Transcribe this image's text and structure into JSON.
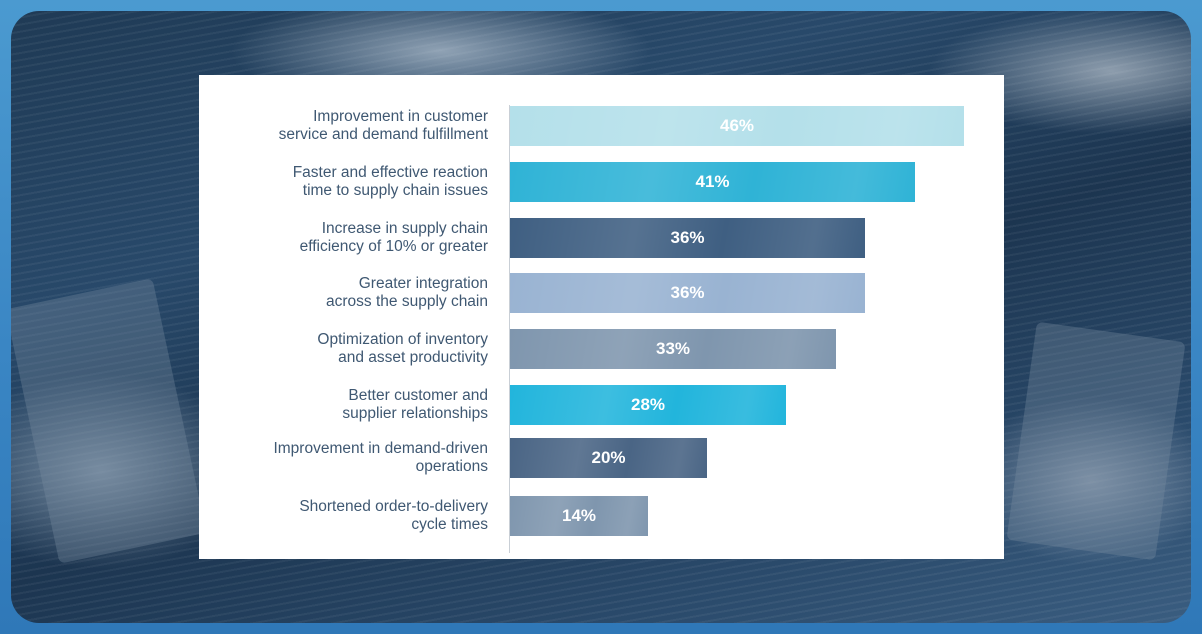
{
  "chart_data": {
    "type": "bar",
    "orientation": "horizontal",
    "categories": [
      "Improvement in customer\nservice and demand fulfillment",
      "Faster and effective reaction\ntime to supply chain issues",
      "Increase in supply chain\nefficiency of 10% or greater",
      "Greater integration\nacross the supply chain",
      "Optimization of inventory\nand asset productivity",
      "Better customer and\nsupplier relationships",
      "Improvement in demand-driven\noperations",
      "Shortened order-to-delivery\ncycle times"
    ],
    "values": [
      46,
      41,
      36,
      36,
      33,
      28,
      20,
      14
    ],
    "value_labels": [
      "46%",
      "41%",
      "36%",
      "36%",
      "33%",
      "28%",
      "20%",
      "14%"
    ],
    "bar_colors": [
      "#b4e0ea",
      "#2fb3d6",
      "#3f5f82",
      "#99b3d2",
      "#7f96ae",
      "#22b5dc",
      "#4a6585",
      "#7f96ae"
    ],
    "xlim": [
      0,
      50
    ],
    "grid": false,
    "legend": "none"
  }
}
